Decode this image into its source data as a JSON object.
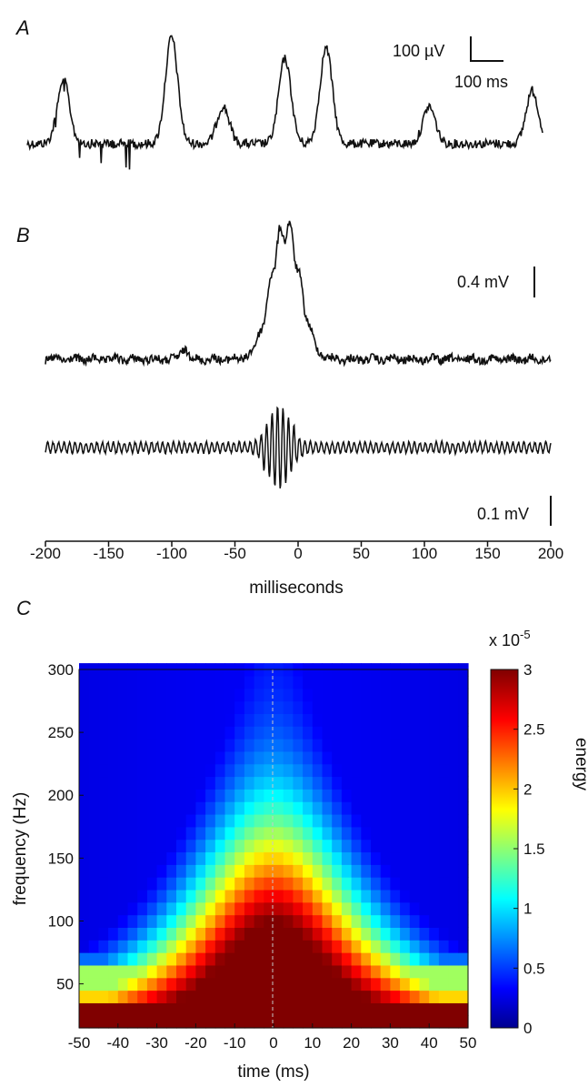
{
  "chart_data": [
    {
      "panel": "A",
      "type": "line",
      "scale_bar": {
        "y_label": "100 µV",
        "x_label": "100 ms"
      },
      "peaks": [
        {
          "position": 0.07,
          "height": 0.6
        },
        {
          "position": 0.28,
          "height": 1.0
        },
        {
          "position": 0.38,
          "height": 0.35
        },
        {
          "position": 0.5,
          "height": 0.8
        },
        {
          "position": 0.58,
          "height": 0.9
        },
        {
          "position": 0.78,
          "height": 0.35
        },
        {
          "position": 0.98,
          "height": 0.5
        }
      ]
    },
    {
      "panel": "B",
      "type": "line",
      "x_axis": {
        "label": "milliseconds",
        "range": [
          -200,
          200
        ],
        "ticks": [
          "-200",
          "-150",
          "-100",
          "-50",
          "0",
          "50",
          "100",
          "150",
          "200"
        ]
      },
      "series": [
        {
          "role": "raw LFP trace",
          "scale_bar": "0.4 mV",
          "peak_time_ms": -10
        },
        {
          "role": "band-pass filtered trace",
          "scale_bar": "0.1 mV",
          "peak_time_ms": -15
        }
      ]
    },
    {
      "panel": "C",
      "type": "heatmap",
      "xlabel": "time (ms)",
      "ylabel": "frequency (Hz)",
      "xlim": [
        -50,
        50
      ],
      "ylim": [
        15,
        300
      ],
      "x_ticks": [
        "-50",
        "-40",
        "-30",
        "-20",
        "-10",
        "0",
        "10",
        "20",
        "30",
        "40",
        "50"
      ],
      "y_ticks": [
        "50",
        "100",
        "150",
        "200",
        "250",
        "300"
      ],
      "colorbar": {
        "label": "energy",
        "multiplier": "x 10",
        "exponent": "-5",
        "range": [
          0,
          3
        ],
        "ticks": [
          "0",
          "0.5",
          "1",
          "1.5",
          "2",
          "2.5",
          "3"
        ],
        "colormap": "jet"
      },
      "reference_line_at_x": 0
    }
  ]
}
